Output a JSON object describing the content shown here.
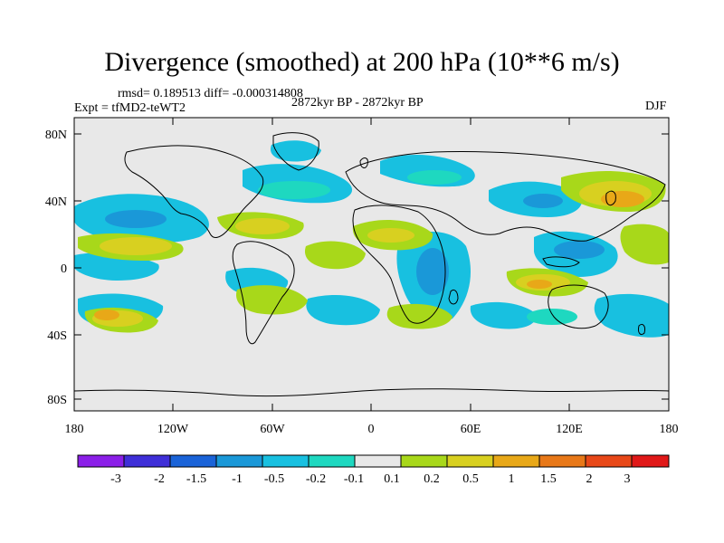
{
  "title": "Divergence (smoothed) at 200 hPa (10**6 m/s)",
  "stats_line": "rmsd= 0.189513 diff= -0.000314808",
  "period": "2872kyr BP - 2872kyr BP",
  "experiment": "Expt = tfMD2-teWT2",
  "season": "DJF",
  "lat_labels": [
    "80N",
    "40N",
    "0",
    "40S",
    "80S"
  ],
  "lon_labels": [
    "180",
    "120W",
    "60W",
    "0",
    "60E",
    "120E",
    "180"
  ],
  "colorbar": {
    "colors": [
      "#8b1fe8",
      "#3f2fd8",
      "#1a63d8",
      "#1a98d8",
      "#18c0e0",
      "#1ed8c0",
      "#e8e8e8",
      "#a8d81a",
      "#d8d020",
      "#e8a818",
      "#e87818",
      "#e84818",
      "#e01818"
    ],
    "labels": [
      "-3",
      "-2",
      "-1.5",
      "-1",
      "-0.5",
      "-0.2",
      "-0.1",
      "0.1",
      "0.2",
      "0.5",
      "1",
      "1.5",
      "2",
      "3"
    ]
  },
  "colors": {
    "land_bg": "#e8e8e8",
    "coast": "#000000"
  }
}
